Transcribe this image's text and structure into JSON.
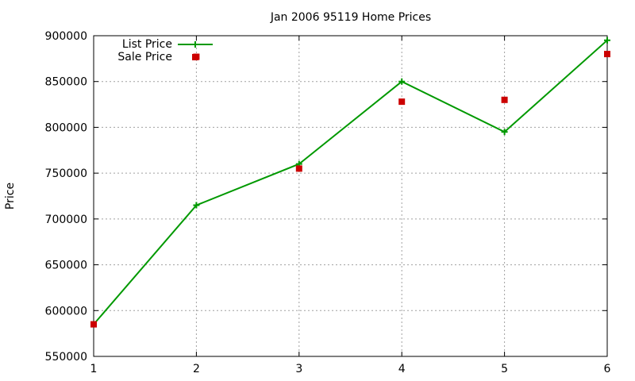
{
  "chart_data": {
    "type": "line",
    "title": "Jan 2006 95119 Home Prices",
    "xlabel": "",
    "ylabel": "Price",
    "x": [
      1,
      2,
      3,
      4,
      5,
      6
    ],
    "xlim": [
      1,
      6
    ],
    "ylim": [
      550000,
      900000
    ],
    "xticks": [
      "1",
      "2",
      "3",
      "4",
      "5",
      "6"
    ],
    "yticks": [
      "550000",
      "600000",
      "650000",
      "700000",
      "750000",
      "800000",
      "850000",
      "900000"
    ],
    "grid": true,
    "legend_position": "top-left",
    "series": [
      {
        "name": "List Price",
        "style": "line-with-plus-markers",
        "color": "#009900",
        "values": [
          585000,
          715000,
          760000,
          850000,
          795000,
          895000
        ]
      },
      {
        "name": "Sale Price",
        "style": "square-markers",
        "color": "#cc0000",
        "values": [
          585000,
          877000,
          755000,
          828000,
          830000,
          880000
        ]
      }
    ]
  }
}
